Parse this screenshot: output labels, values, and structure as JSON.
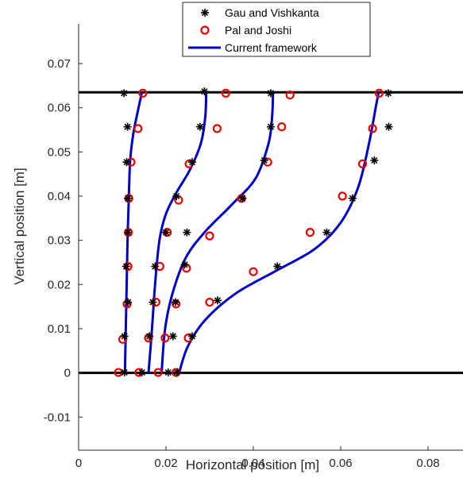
{
  "chart_data": {
    "type": "scatter",
    "title": "",
    "xlabel": "Horizontal position [m]",
    "ylabel": "Vertical position [m]",
    "xlim": [
      0,
      0.088
    ],
    "ylim": [
      -0.0175,
      0.079
    ],
    "xticks": [
      0,
      0.02,
      0.04,
      0.06,
      0.08
    ],
    "xtick_labels": [
      "0",
      "0.02",
      "0.04",
      "0.06",
      "0.08"
    ],
    "yticks": [
      -0.01,
      0,
      0.01,
      0.02,
      0.03,
      0.04,
      0.05,
      0.06,
      0.07
    ],
    "ytick_labels": [
      "-0.01",
      "0",
      "0.01",
      "0.02",
      "0.03",
      "0.04",
      "0.05",
      "0.06",
      "0.07"
    ],
    "grid": false,
    "legend_position": "top-center",
    "colors": {
      "gau": "#000000",
      "pal": "#e60000",
      "current": "#0000cc",
      "walls": "#000000"
    },
    "horizontal_lines": [
      {
        "y": 0,
        "label": "bottom wall"
      },
      {
        "y": 0.0635,
        "label": "top wall"
      }
    ],
    "series": [
      {
        "name": "Gau and Vishkanta",
        "marker": "asterisk",
        "points": [
          [
            0.0104,
            0.0633
          ],
          [
            0.0112,
            0.0557
          ],
          [
            0.011,
            0.0477
          ],
          [
            0.0113,
            0.0395
          ],
          [
            0.0113,
            0.0318
          ],
          [
            0.0109,
            0.0241
          ],
          [
            0.0113,
            0.016
          ],
          [
            0.0105,
            0.0083
          ],
          [
            0.0105,
            0.0001
          ],
          [
            0.0288,
            0.0637
          ],
          [
            0.0278,
            0.0557
          ],
          [
            0.026,
            0.0477
          ],
          [
            0.0224,
            0.04
          ],
          [
            0.02,
            0.0318
          ],
          [
            0.0175,
            0.0241
          ],
          [
            0.017,
            0.016
          ],
          [
            0.0162,
            0.0083
          ],
          [
            0.0145,
            0.0001
          ],
          [
            0.044,
            0.0633
          ],
          [
            0.044,
            0.0557
          ],
          [
            0.0425,
            0.0481
          ],
          [
            0.0375,
            0.0395
          ],
          [
            0.0248,
            0.0318
          ],
          [
            0.0243,
            0.0245
          ],
          [
            0.0222,
            0.016
          ],
          [
            0.0216,
            0.0083
          ],
          [
            0.0205,
            0.0001
          ],
          [
            0.0709,
            0.0633
          ],
          [
            0.071,
            0.0557
          ],
          [
            0.0677,
            0.0481
          ],
          [
            0.0627,
            0.0395
          ],
          [
            0.0568,
            0.0318
          ],
          [
            0.0455,
            0.0241
          ],
          [
            0.0318,
            0.0164
          ],
          [
            0.026,
            0.0083
          ],
          [
            0.0225,
            0.0001
          ]
        ]
      },
      {
        "name": "Pal and Joshi",
        "marker": "circle",
        "points": [
          [
            0.0147,
            0.0633
          ],
          [
            0.0136,
            0.0553
          ],
          [
            0.012,
            0.0477
          ],
          [
            0.0115,
            0.0395
          ],
          [
            0.0114,
            0.0318
          ],
          [
            0.0113,
            0.0241
          ],
          [
            0.0111,
            0.0156
          ],
          [
            0.0101,
            0.0076
          ],
          [
            0.0091,
            0.0001
          ],
          [
            0.0337,
            0.0633
          ],
          [
            0.0317,
            0.0553
          ],
          [
            0.0253,
            0.0473
          ],
          [
            0.0229,
            0.0391
          ],
          [
            0.0203,
            0.0318
          ],
          [
            0.0186,
            0.0241
          ],
          [
            0.0177,
            0.016
          ],
          [
            0.016,
            0.0079
          ],
          [
            0.0138,
            0.0001
          ],
          [
            0.0484,
            0.0629
          ],
          [
            0.0465,
            0.0557
          ],
          [
            0.0433,
            0.0477
          ],
          [
            0.0373,
            0.0395
          ],
          [
            0.03,
            0.031
          ],
          [
            0.0247,
            0.0237
          ],
          [
            0.0223,
            0.0156
          ],
          [
            0.0198,
            0.0079
          ],
          [
            0.0182,
            0.0001
          ],
          [
            0.0688,
            0.0633
          ],
          [
            0.0673,
            0.0553
          ],
          [
            0.065,
            0.0473
          ],
          [
            0.0604,
            0.04
          ],
          [
            0.053,
            0.0318
          ],
          [
            0.04,
            0.0229
          ],
          [
            0.03,
            0.016
          ],
          [
            0.0251,
            0.0079
          ],
          [
            0.0223,
            0.0001
          ]
        ]
      },
      {
        "name": "Current framework",
        "marker": "line",
        "curves": [
          [
            [
              0.0106,
              0.0
            ],
            [
              0.0108,
              0.01
            ],
            [
              0.011,
              0.02
            ],
            [
              0.0112,
              0.03
            ],
            [
              0.0115,
              0.04
            ],
            [
              0.0118,
              0.048
            ],
            [
              0.0125,
              0.054
            ],
            [
              0.0135,
              0.059
            ],
            [
              0.0145,
              0.0635
            ]
          ],
          [
            [
              0.016,
              0.0
            ],
            [
              0.0168,
              0.01
            ],
            [
              0.0175,
              0.02
            ],
            [
              0.0185,
              0.03
            ],
            [
              0.02,
              0.036
            ],
            [
              0.0225,
              0.041
            ],
            [
              0.0255,
              0.046
            ],
            [
              0.028,
              0.052
            ],
            [
              0.029,
              0.058
            ],
            [
              0.0292,
              0.0635
            ]
          ],
          [
            [
              0.019,
              0.0
            ],
            [
              0.0198,
              0.01
            ],
            [
              0.0215,
              0.018
            ],
            [
              0.0245,
              0.026
            ],
            [
              0.029,
              0.032
            ],
            [
              0.035,
              0.038
            ],
            [
              0.0405,
              0.044
            ],
            [
              0.0435,
              0.052
            ],
            [
              0.0443,
              0.058
            ],
            [
              0.0445,
              0.0635
            ]
          ],
          [
            [
              0.023,
              0.0
            ],
            [
              0.025,
              0.006
            ],
            [
              0.029,
              0.012
            ],
            [
              0.036,
              0.018
            ],
            [
              0.045,
              0.023
            ],
            [
              0.054,
              0.028
            ],
            [
              0.06,
              0.034
            ],
            [
              0.064,
              0.042
            ],
            [
              0.0665,
              0.052
            ],
            [
              0.068,
              0.06
            ],
            [
              0.0687,
              0.0635
            ]
          ]
        ]
      }
    ]
  }
}
